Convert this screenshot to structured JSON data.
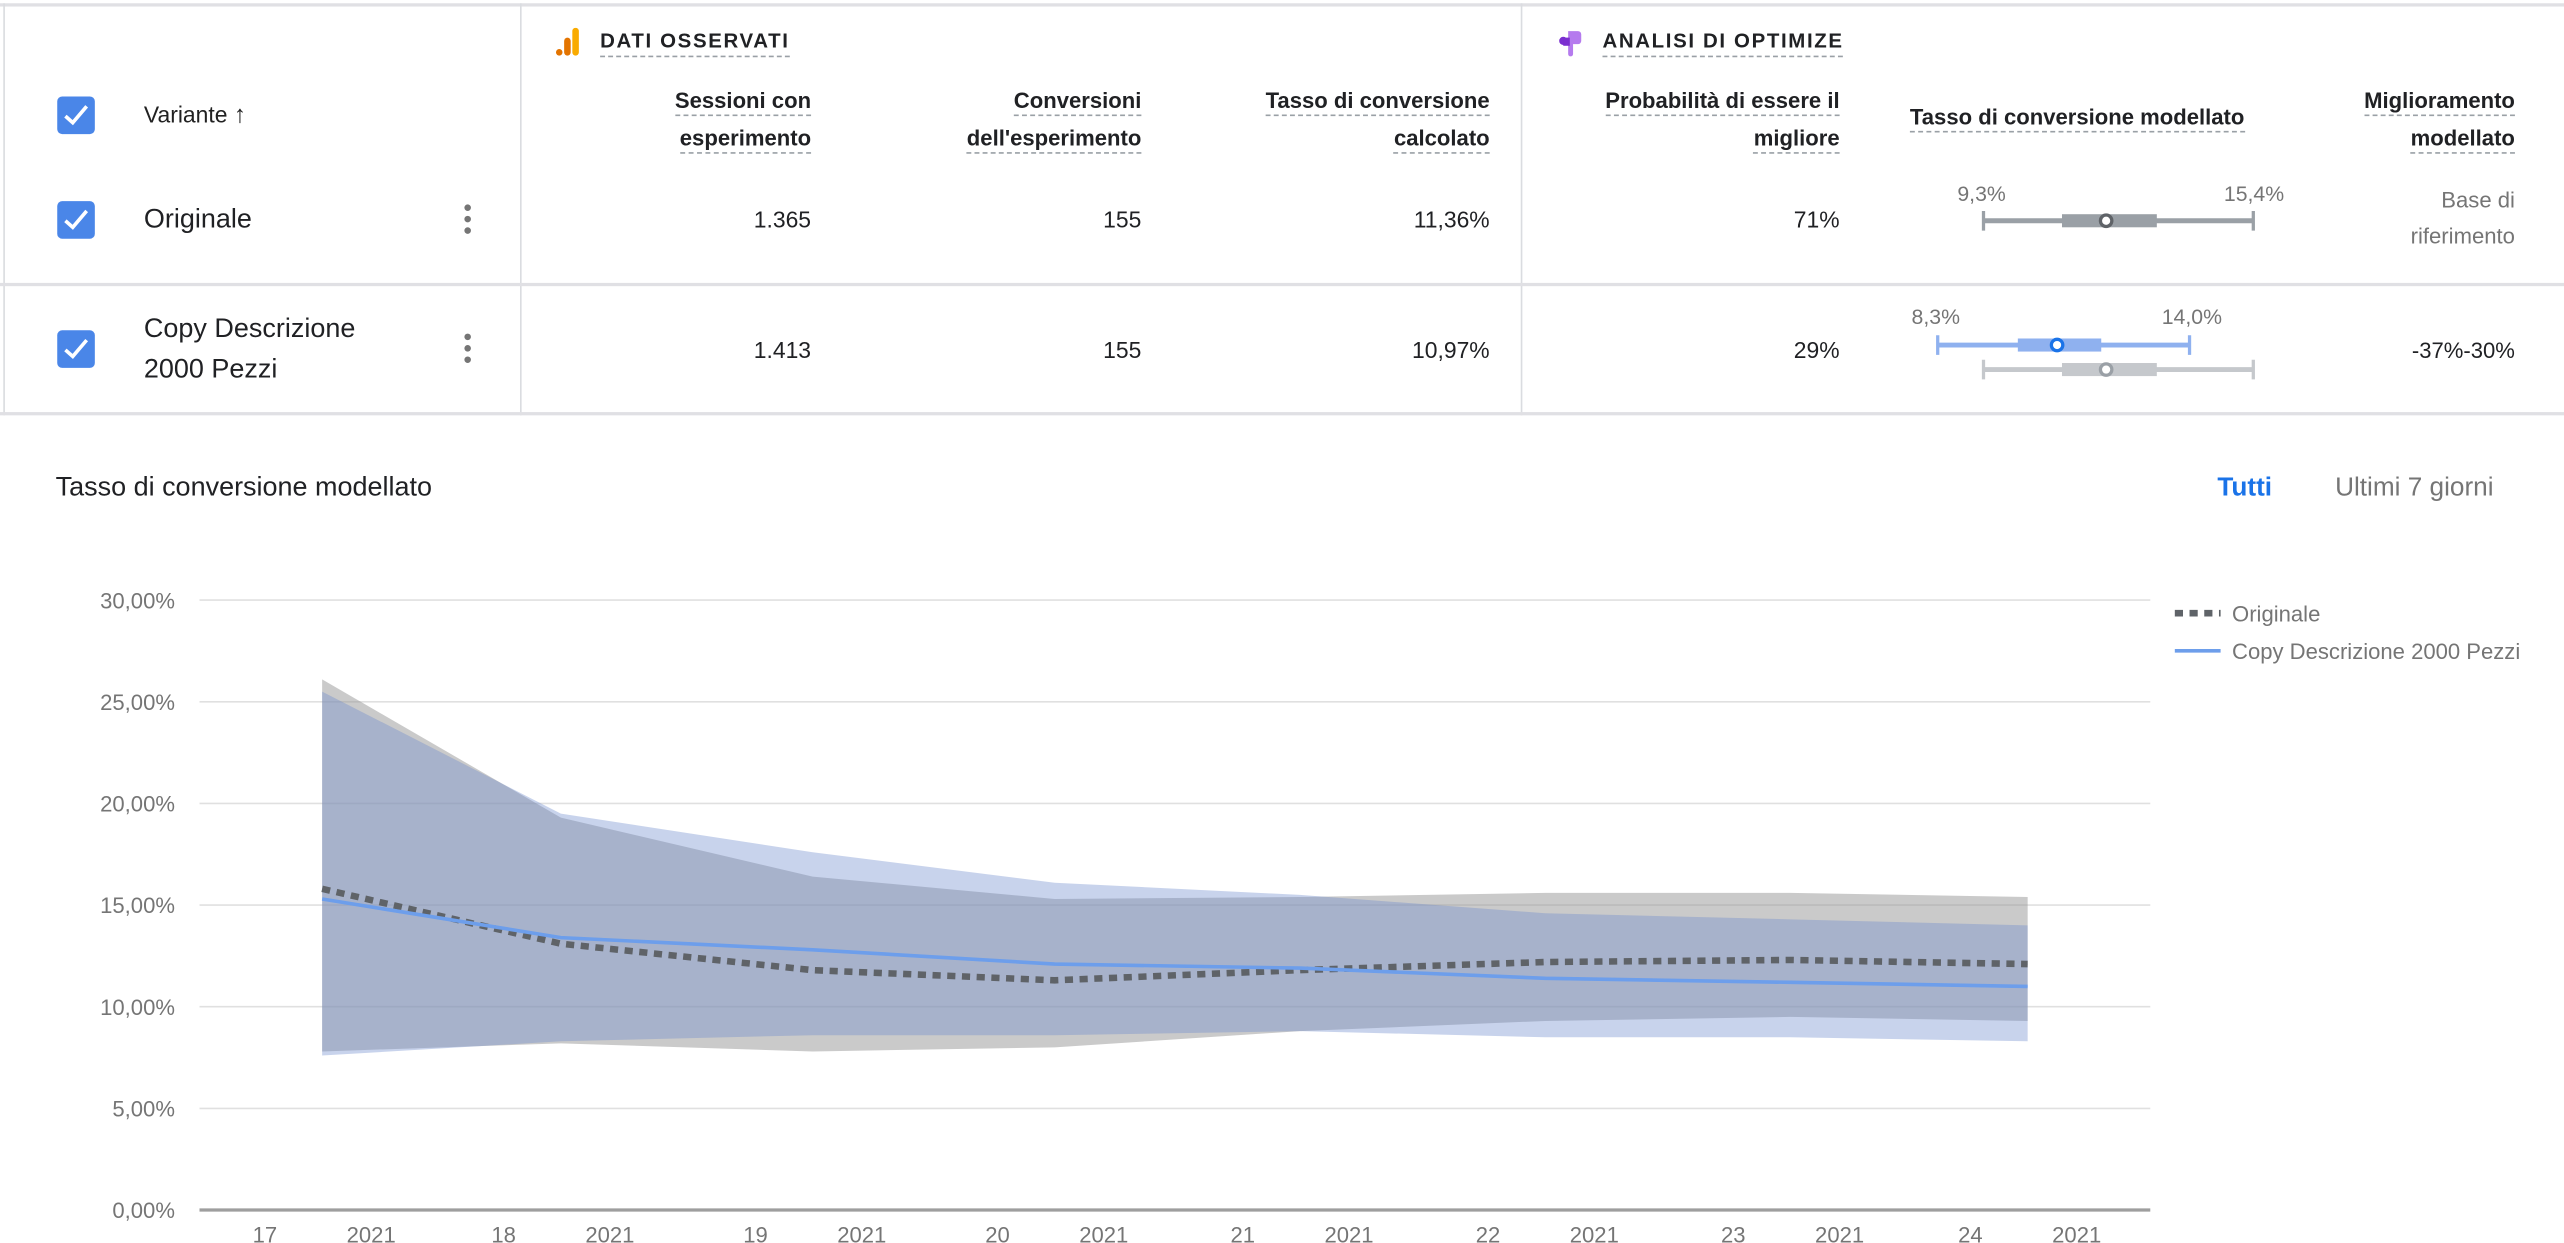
{
  "table": {
    "variant_header": "Variante",
    "sections": {
      "observed": "DATI OSSERVATI",
      "optimize": "ANALISI DI OPTIMIZE"
    },
    "columns": {
      "sessions": [
        "Sessioni con",
        "esperimento"
      ],
      "conversions": [
        "Conversioni",
        "dell'esperimento"
      ],
      "conv_rate": [
        "Tasso di conversione",
        "calcolato"
      ],
      "prob_best": [
        "Probabilità di essere il",
        "migliore"
      ],
      "modeled_rate": "Tasso di conversione modellato",
      "improvement": [
        "Miglioramento",
        "modellato"
      ]
    },
    "rows": [
      {
        "name": [
          "Originale"
        ],
        "checked": true,
        "sessions": "1.365",
        "conversions": "155",
        "conv_rate": "11,36%",
        "prob_best": "71%",
        "ci_low": "9,3%",
        "ci_high": "15,4%",
        "improvement": [
          "Base di",
          "riferimento"
        ]
      },
      {
        "name": [
          "Copy Descrizione",
          "2000 Pezzi"
        ],
        "checked": true,
        "sessions": "1.413",
        "conversions": "155",
        "conv_rate": "10,97%",
        "prob_best": "29%",
        "ci_low": "8,3%",
        "ci_high": "14,0%",
        "improvement": [
          "-37%-30%"
        ]
      }
    ]
  },
  "chart_header": {
    "title": "Tasso di conversione modellato",
    "range_all": "Tutti",
    "range_7d": "Ultimi 7 giorni"
  },
  "colors": {
    "accent": "#1a73e8",
    "checkbox": "#4a86e8",
    "original": "#5f6368",
    "copy": "#6d9eeb"
  },
  "chart_data": {
    "type": "line",
    "title": "Tasso di conversione modellato",
    "ylim": [
      0,
      30
    ],
    "y_ticks": [
      "0,00%",
      "5,00%",
      "10,00%",
      "15,00%",
      "20,00%",
      "25,00%",
      "30,00%"
    ],
    "x_ticks": [
      {
        "day": "17",
        "year": "2021"
      },
      {
        "day": "18",
        "year": "2021"
      },
      {
        "day": "19",
        "year": "2021"
      },
      {
        "day": "20",
        "year": "2021"
      },
      {
        "day": "21",
        "year": "2021"
      },
      {
        "day": "22",
        "year": "2021"
      },
      {
        "day": "23",
        "year": "2021"
      },
      {
        "day": "24",
        "year": "2021"
      }
    ],
    "grid": true,
    "legend": "right",
    "series": [
      {
        "name": "Originale",
        "style": "dashed",
        "color": "#5f6368",
        "values": [
          15.8,
          13.1,
          11.8,
          11.3,
          11.8,
          12.2,
          12.3,
          12.1
        ],
        "upper": [
          26.1,
          19.3,
          16.4,
          15.3,
          15.4,
          15.6,
          15.6,
          15.4
        ],
        "lower": [
          7.8,
          8.2,
          7.8,
          8.0,
          8.8,
          9.3,
          9.5,
          9.3
        ]
      },
      {
        "name": "Copy Descrizione 2000 Pezzi",
        "style": "solid",
        "color": "#6d9eeb",
        "values": [
          15.3,
          13.4,
          12.8,
          12.1,
          11.9,
          11.4,
          11.2,
          11.0
        ],
        "upper": [
          25.5,
          19.5,
          17.6,
          16.1,
          15.5,
          14.6,
          14.3,
          14.0
        ],
        "lower": [
          7.6,
          8.3,
          8.6,
          8.6,
          8.8,
          8.5,
          8.5,
          8.3
        ]
      }
    ]
  }
}
